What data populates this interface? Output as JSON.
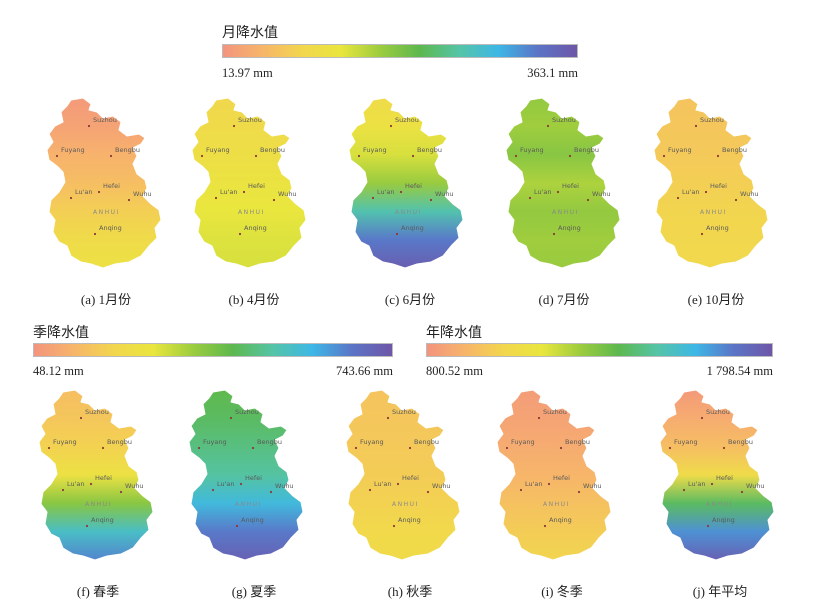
{
  "colors": {
    "ramp": [
      "#f3947e",
      "#f7b56a",
      "#f2d64e",
      "#e9e63e",
      "#9ccc3e",
      "#5db84e",
      "#55c4a6",
      "#3db7e6",
      "#5b74c6",
      "#6e56a8"
    ],
    "outline": "#ffffff",
    "marker": "#8c3a3a"
  },
  "legends": {
    "monthly": {
      "title": "月降水值",
      "min": "13.97 mm",
      "max": "363.1 mm"
    },
    "seasonal": {
      "title": "季降水值",
      "min": "48.12 mm",
      "max": "743.66 mm"
    },
    "annual": {
      "title": "年降水值",
      "min": "800.52 mm",
      "max": "1 798.54 mm"
    }
  },
  "map_labels": {
    "cities": [
      "Suzhou",
      "Fuyang",
      "Bengbu",
      "Hefei",
      "Lu'an",
      "Wuhu",
      "Anqing"
    ],
    "province": "ANHUI"
  },
  "maps": [
    {
      "caption": "(a) 1月份",
      "levels": [
        0.02,
        0.05,
        0.1,
        0.14,
        0.2,
        0.26,
        0.3
      ]
    },
    {
      "caption": "(b) 4月份",
      "levels": [
        0.23,
        0.26,
        0.28,
        0.31,
        0.33,
        0.35,
        0.36
      ]
    },
    {
      "caption": "(c) 6月份",
      "levels": [
        0.26,
        0.3,
        0.36,
        0.45,
        0.68,
        0.88,
        0.97
      ]
    },
    {
      "caption": "(d) 7月份",
      "levels": [
        0.46,
        0.44,
        0.48,
        0.42,
        0.46,
        0.44,
        0.45
      ]
    },
    {
      "caption": "(e) 10月份",
      "levels": [
        0.16,
        0.17,
        0.18,
        0.2,
        0.22,
        0.23,
        0.24
      ]
    },
    {
      "caption": "(f) 春季",
      "levels": [
        0.14,
        0.17,
        0.21,
        0.3,
        0.48,
        0.72,
        0.86
      ]
    },
    {
      "caption": "(g) 夏季",
      "levels": [
        0.55,
        0.58,
        0.62,
        0.66,
        0.76,
        0.88,
        0.96
      ]
    },
    {
      "caption": "(h) 秋季",
      "levels": [
        0.16,
        0.17,
        0.18,
        0.19,
        0.21,
        0.24,
        0.26
      ]
    },
    {
      "caption": "(i) 冬季",
      "levels": [
        0.03,
        0.05,
        0.08,
        0.11,
        0.15,
        0.19,
        0.22
      ]
    },
    {
      "caption": "(j) 年平均",
      "levels": [
        0.02,
        0.08,
        0.14,
        0.26,
        0.58,
        0.84,
        0.96
      ]
    }
  ]
}
